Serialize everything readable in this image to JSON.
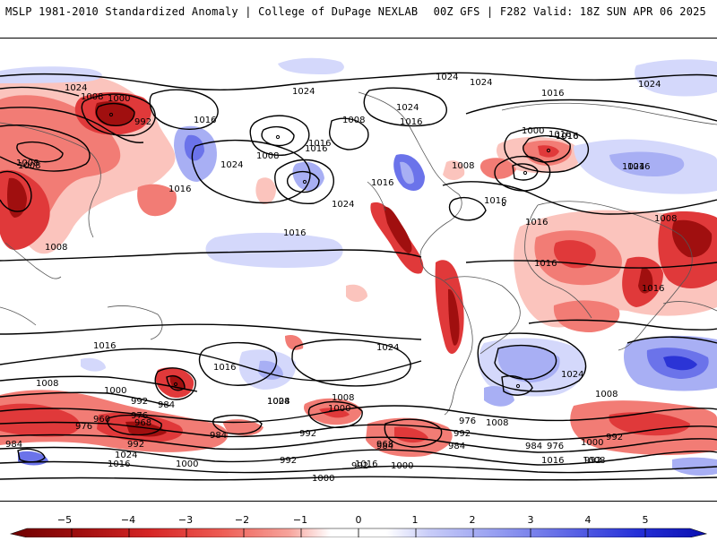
{
  "header": {
    "left": "MSLP 1981-2010 Standardized Anomaly | College of DuPage NEXLAB",
    "right": "00Z GFS | F282 Valid: 18Z SUN APR 06 2025"
  },
  "colors": {
    "neg_strong": "#a00f0f",
    "neg_mid": "#e0393a",
    "neg_light": "#f27c75",
    "neg_faint": "#fbc4bd",
    "pos_faint": "#d4d8fb",
    "pos_light": "#a8aff4",
    "pos_mid": "#6b73ea",
    "pos_strong": "#2b34d6"
  },
  "isobar_labels": [
    {
      "id": "l1",
      "text": "1024"
    },
    {
      "id": "l2",
      "text": "1008"
    },
    {
      "id": "l3",
      "text": "1000"
    },
    {
      "id": "l4",
      "text": "992"
    },
    {
      "id": "l5",
      "text": "1016"
    },
    {
      "id": "l6",
      "text": "1024"
    },
    {
      "id": "l7",
      "text": "1008"
    },
    {
      "id": "l8",
      "text": "1016"
    },
    {
      "id": "l9",
      "text": "1024"
    },
    {
      "id": "l10",
      "text": "1016"
    },
    {
      "id": "l11",
      "text": "1024"
    },
    {
      "id": "l12",
      "text": "1008"
    },
    {
      "id": "l13",
      "text": "1024"
    },
    {
      "id": "l14",
      "text": "1024"
    },
    {
      "id": "l15",
      "text": "1016"
    },
    {
      "id": "l16",
      "text": "1016"
    },
    {
      "id": "l17",
      "text": "1000"
    },
    {
      "id": "l18",
      "text": "1016"
    },
    {
      "id": "l19",
      "text": "1024"
    },
    {
      "id": "l20",
      "text": "1008"
    },
    {
      "id": "l21",
      "text": "1016"
    },
    {
      "id": "l22",
      "text": "1016"
    },
    {
      "id": "l23",
      "text": "1024"
    },
    {
      "id": "l24",
      "text": "1016"
    },
    {
      "id": "l25",
      "text": "1016"
    },
    {
      "id": "l26",
      "text": "1016"
    },
    {
      "id": "l27",
      "text": "1016"
    },
    {
      "id": "l28",
      "text": "1008"
    },
    {
      "id": "l29",
      "text": "1008"
    },
    {
      "id": "l30",
      "text": "1008"
    },
    {
      "id": "l31",
      "text": "1016"
    },
    {
      "id": "l32",
      "text": "1008"
    },
    {
      "id": "l33",
      "text": "1016"
    },
    {
      "id": "l34",
      "text": "1016"
    },
    {
      "id": "l35",
      "text": "1024"
    },
    {
      "id": "l36",
      "text": "1016"
    },
    {
      "id": "l37",
      "text": "1016"
    },
    {
      "id": "l38",
      "text": "1024"
    },
    {
      "id": "l39",
      "text": "1016"
    },
    {
      "id": "l40",
      "text": "1024"
    },
    {
      "id": "l41",
      "text": "1008"
    },
    {
      "id": "l42",
      "text": "1000"
    },
    {
      "id": "l43",
      "text": "992"
    },
    {
      "id": "l44",
      "text": "976"
    },
    {
      "id": "l45",
      "text": "984"
    },
    {
      "id": "l46",
      "text": "968"
    },
    {
      "id": "l47",
      "text": "960"
    },
    {
      "id": "l48",
      "text": "976"
    },
    {
      "id": "l49",
      "text": "984"
    },
    {
      "id": "l50",
      "text": "992"
    },
    {
      "id": "l51",
      "text": "1024"
    },
    {
      "id": "l52",
      "text": "1016"
    },
    {
      "id": "l53",
      "text": "1000"
    },
    {
      "id": "l54",
      "text": "1008"
    },
    {
      "id": "l55",
      "text": "1024"
    },
    {
      "id": "l56",
      "text": "1008"
    },
    {
      "id": "l57",
      "text": "1000"
    },
    {
      "id": "l58",
      "text": "984"
    },
    {
      "id": "l59",
      "text": "992"
    },
    {
      "id": "l60",
      "text": "984"
    },
    {
      "id": "l61",
      "text": "992"
    },
    {
      "id": "l62",
      "text": "992"
    },
    {
      "id": "l63",
      "text": "976"
    },
    {
      "id": "l64",
      "text": "968"
    },
    {
      "id": "l65",
      "text": "984"
    },
    {
      "id": "l66",
      "text": "1000"
    },
    {
      "id": "l67",
      "text": "992"
    },
    {
      "id": "l68",
      "text": "1000"
    },
    {
      "id": "l69",
      "text": "1008"
    },
    {
      "id": "l70",
      "text": "984"
    },
    {
      "id": "l71",
      "text": "976"
    },
    {
      "id": "l72",
      "text": "1000"
    },
    {
      "id": "l73",
      "text": "992"
    },
    {
      "id": "l74",
      "text": "1008"
    },
    {
      "id": "l75",
      "text": "1016"
    },
    {
      "id": "l76",
      "text": "992"
    },
    {
      "id": "l77",
      "text": "1016"
    },
    {
      "id": "l78",
      "text": "1008"
    }
  ],
  "colorbar": {
    "ticks": [
      "−5",
      "−4",
      "−3",
      "−2",
      "−1",
      "0",
      "1",
      "2",
      "3",
      "4",
      "5"
    ]
  }
}
